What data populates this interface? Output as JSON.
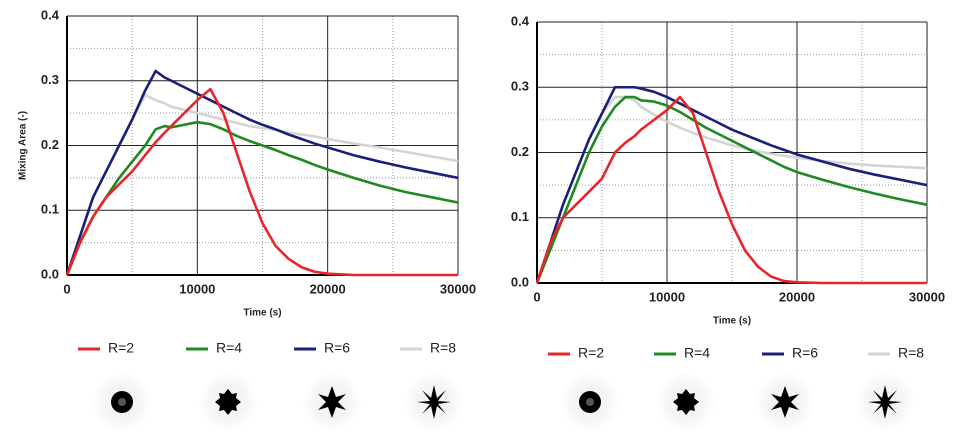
{
  "chart_data": [
    {
      "type": "line",
      "y_label": "Mixing Area (-)",
      "x_label": "Time (s)",
      "xlim": [
        0,
        30000
      ],
      "xticks": [
        0,
        10000,
        20000,
        30000
      ],
      "ylim": [
        0,
        0.4
      ],
      "yticks": [
        {
          "value": 0,
          "label": "0.0"
        },
        {
          "value": 0.1,
          "label": "0.1"
        },
        {
          "value": 0.2,
          "label": "0.2"
        },
        {
          "value": 0.3,
          "label": "0.3"
        },
        {
          "value": 0.4,
          "label": "0.4"
        }
      ],
      "grid": true,
      "x": [
        0,
        1000,
        2000,
        3000,
        4000,
        5000,
        6000,
        6800,
        7500,
        8000,
        9000,
        10000,
        11000,
        12000,
        13000,
        14000,
        15000,
        16000,
        17000,
        18000,
        19000,
        20000,
        22000,
        24000,
        26000,
        28000,
        30000
      ],
      "series": [
        {
          "name": "R=2",
          "color": "#e8262a",
          "values": [
            0,
            0.05,
            0.09,
            0.12,
            0.14,
            0.16,
            0.185,
            0.205,
            0.22,
            0.23,
            0.25,
            0.27,
            0.287,
            0.25,
            0.19,
            0.13,
            0.08,
            0.045,
            0.025,
            0.012,
            0.005,
            0.002,
            0,
            0,
            0,
            0,
            0
          ]
        },
        {
          "name": "R=4",
          "color": "#1f8a1f",
          "values": [
            0,
            0.05,
            0.09,
            0.12,
            0.15,
            0.175,
            0.2,
            0.225,
            0.23,
            0.228,
            0.232,
            0.236,
            0.233,
            0.225,
            0.215,
            0.207,
            0.2,
            0.193,
            0.185,
            0.178,
            0.17,
            0.163,
            0.15,
            0.138,
            0.128,
            0.12,
            0.112
          ]
        },
        {
          "name": "R=6",
          "color": "#1c1f7a",
          "values": [
            0,
            0.06,
            0.12,
            0.16,
            0.2,
            0.24,
            0.285,
            0.315,
            0.305,
            0.3,
            0.29,
            0.28,
            0.27,
            0.26,
            0.25,
            0.24,
            0.232,
            0.225,
            0.217,
            0.21,
            0.203,
            0.197,
            0.185,
            0.175,
            0.166,
            0.158,
            0.15
          ]
        },
        {
          "name": "R=8",
          "color": "#d4d4d4",
          "values": [
            0,
            0.06,
            0.12,
            0.16,
            0.2,
            0.24,
            0.278,
            0.27,
            0.265,
            0.26,
            0.255,
            0.25,
            0.245,
            0.24,
            0.235,
            0.23,
            0.227,
            0.224,
            0.22,
            0.217,
            0.214,
            0.21,
            0.203,
            0.197,
            0.19,
            0.183,
            0.176
          ]
        }
      ]
    },
    {
      "type": "line",
      "x_label": "Time (s)",
      "xlim": [
        0,
        30000
      ],
      "xticks": [
        0,
        10000,
        20000,
        30000
      ],
      "ylim": [
        0,
        0.4
      ],
      "yticks": [
        {
          "value": 0,
          "label": "0.0"
        },
        {
          "value": 0.1,
          "label": "0.1"
        },
        {
          "value": 0.2,
          "label": "0.2"
        },
        {
          "value": 0.3,
          "label": "0.3"
        },
        {
          "value": 0.4,
          "label": "0.4"
        }
      ],
      "grid": true,
      "x": [
        0,
        1000,
        2000,
        3000,
        4000,
        5000,
        6000,
        6800,
        7500,
        8000,
        9000,
        10000,
        11000,
        12000,
        13000,
        14000,
        15000,
        16000,
        17000,
        18000,
        19000,
        20000,
        22000,
        24000,
        26000,
        28000,
        30000
      ],
      "series": [
        {
          "name": "R=2",
          "color": "#e8262a",
          "values": [
            0,
            0.06,
            0.1,
            0.12,
            0.14,
            0.16,
            0.2,
            0.215,
            0.225,
            0.235,
            0.25,
            0.265,
            0.285,
            0.26,
            0.2,
            0.14,
            0.09,
            0.05,
            0.025,
            0.01,
            0.003,
            0.001,
            0,
            0,
            0,
            0,
            0
          ]
        },
        {
          "name": "R=4",
          "color": "#1f8a1f",
          "values": [
            0,
            0.05,
            0.1,
            0.15,
            0.2,
            0.24,
            0.27,
            0.285,
            0.285,
            0.28,
            0.278,
            0.272,
            0.262,
            0.25,
            0.238,
            0.228,
            0.218,
            0.208,
            0.198,
            0.188,
            0.178,
            0.17,
            0.158,
            0.147,
            0.137,
            0.128,
            0.12
          ]
        },
        {
          "name": "R=6",
          "color": "#1c1f7a",
          "values": [
            0,
            0.06,
            0.12,
            0.17,
            0.22,
            0.26,
            0.3,
            0.3,
            0.3,
            0.298,
            0.293,
            0.285,
            0.275,
            0.265,
            0.255,
            0.245,
            0.235,
            0.227,
            0.219,
            0.211,
            0.204,
            0.197,
            0.186,
            0.175,
            0.166,
            0.158,
            0.15
          ]
        },
        {
          "name": "R=8",
          "color": "#d4d4d4",
          "values": [
            0,
            0.06,
            0.12,
            0.17,
            0.22,
            0.26,
            0.285,
            0.285,
            0.28,
            0.27,
            0.258,
            0.247,
            0.238,
            0.23,
            0.223,
            0.217,
            0.211,
            0.206,
            0.202,
            0.198,
            0.195,
            0.192,
            0.187,
            0.183,
            0.18,
            0.178,
            0.176
          ]
        }
      ]
    }
  ]
}
